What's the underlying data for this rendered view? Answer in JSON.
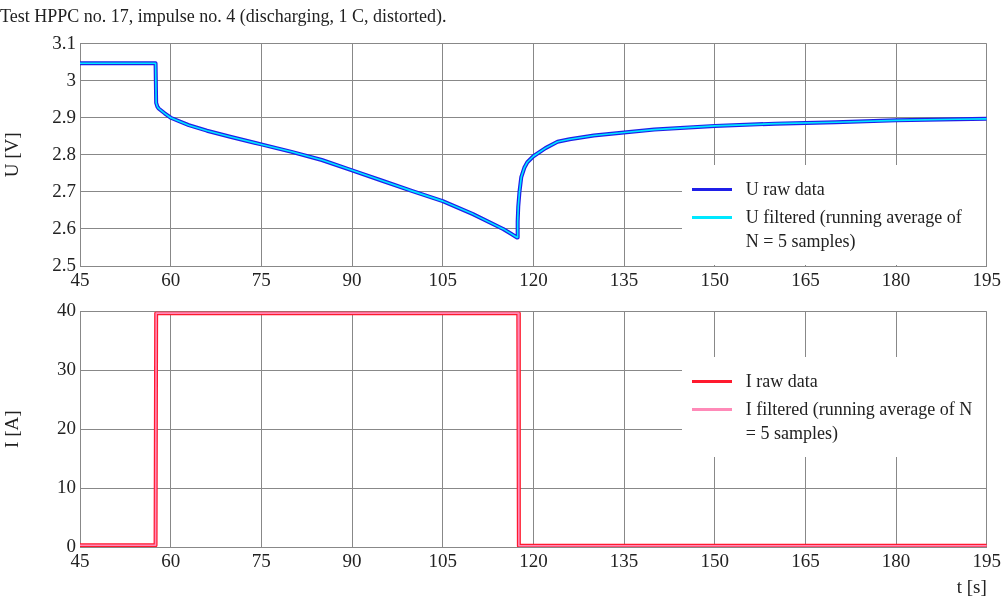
{
  "chart_data": [
    {
      "type": "line",
      "title": "Test HPPC no. 17, impulse no. 4 (discharging, 1 C, distorted).",
      "ylabel": "U [V]",
      "x": [
        45,
        50,
        55,
        57.5,
        57.6,
        57.8,
        58,
        59,
        60,
        63,
        66,
        70,
        75,
        80,
        85,
        90,
        95,
        100,
        105,
        110,
        115,
        117.3,
        117.4,
        117.5,
        117.7,
        118,
        118.5,
        119,
        120,
        122,
        124,
        126,
        130,
        135,
        140,
        150,
        160,
        170,
        180,
        190,
        195
      ],
      "series": [
        {
          "name": "U raw data",
          "color": "#1f1fe8",
          "values": [
            3.047,
            3.047,
            3.047,
            3.047,
            2.94,
            2.93,
            2.925,
            2.912,
            2.9,
            2.88,
            2.865,
            2.848,
            2.828,
            2.808,
            2.786,
            2.758,
            2.73,
            2.702,
            2.675,
            2.64,
            2.6,
            2.577,
            2.62,
            2.66,
            2.7,
            2.74,
            2.765,
            2.78,
            2.796,
            2.818,
            2.835,
            2.842,
            2.852,
            2.86,
            2.868,
            2.878,
            2.884,
            2.888,
            2.893,
            2.896,
            2.897
          ]
        },
        {
          "name": "U filtered (running average of N = 5 samples)",
          "color": "#00e8ff",
          "values": [
            3.047,
            3.047,
            3.047,
            3.047,
            2.94,
            2.93,
            2.925,
            2.912,
            2.9,
            2.88,
            2.865,
            2.848,
            2.828,
            2.808,
            2.786,
            2.758,
            2.73,
            2.702,
            2.675,
            2.64,
            2.6,
            2.577,
            2.62,
            2.66,
            2.7,
            2.74,
            2.765,
            2.78,
            2.796,
            2.818,
            2.835,
            2.842,
            2.852,
            2.86,
            2.868,
            2.878,
            2.884,
            2.888,
            2.893,
            2.896,
            2.897
          ]
        }
      ],
      "xlim": [
        45,
        195
      ],
      "xticks": [
        45,
        60,
        75,
        90,
        105,
        120,
        135,
        150,
        165,
        180,
        195
      ],
      "ylim": [
        2.5,
        3.1
      ],
      "yticks": [
        2.5,
        2.6,
        2.7,
        2.8,
        2.9,
        3,
        3.1
      ],
      "grid": true,
      "legend": "bottom right"
    },
    {
      "type": "line",
      "xlabel": "t [s]",
      "ylabel": "I [A]",
      "x": [
        45,
        57.5,
        57.6,
        117.5,
        117.6,
        195
      ],
      "series": [
        {
          "name": "I raw data",
          "color": "#ff1a2e",
          "values": [
            0.3,
            0.3,
            39.7,
            39.7,
            0.2,
            0.2
          ]
        },
        {
          "name": "I filtered (running average of N = 5 samples)",
          "color": "#ff8ab8",
          "values": [
            0.3,
            0.3,
            39.7,
            39.7,
            0.2,
            0.2
          ]
        }
      ],
      "xlim": [
        45,
        195
      ],
      "xticks": [
        45,
        60,
        75,
        90,
        105,
        120,
        135,
        150,
        165,
        180,
        195
      ],
      "ylim": [
        0,
        40
      ],
      "yticks": [
        0,
        10,
        20,
        30,
        40
      ],
      "grid": true,
      "legend": "top right"
    }
  ]
}
